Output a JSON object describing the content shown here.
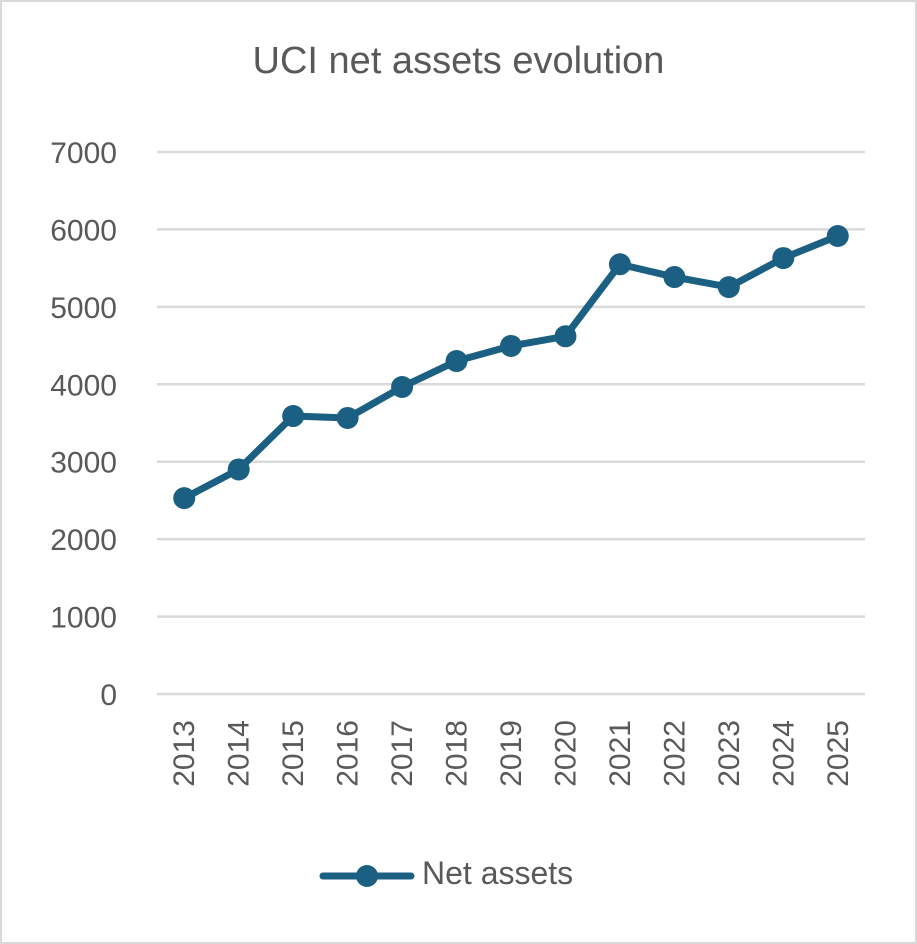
{
  "chart_data": {
    "type": "line",
    "title": "UCI net assets evolution",
    "xlabel": "",
    "ylabel": "",
    "categories": [
      "2013",
      "2014",
      "2015",
      "2016",
      "2017",
      "2018",
      "2019",
      "2020",
      "2021",
      "2022",
      "2023",
      "2024",
      "2025"
    ],
    "series": [
      {
        "name": "Net assets",
        "color": "#1b5f82",
        "marker": "circle",
        "values": [
          2530,
          2900,
          3590,
          3565,
          3965,
          4300,
          4495,
          4620,
          5550,
          5385,
          5255,
          5630,
          5915
        ]
      }
    ],
    "ylim": [
      0,
      7000
    ],
    "yticks": [
      0,
      1000,
      2000,
      3000,
      4000,
      5000,
      6000,
      7000
    ],
    "grid": true,
    "x_tick_rotation": -90,
    "legend_position": "bottom"
  },
  "colors": {
    "series": "#1b5f82",
    "grid": "#d9d9d9",
    "text": "#595959",
    "border": "#d9d9d9"
  }
}
